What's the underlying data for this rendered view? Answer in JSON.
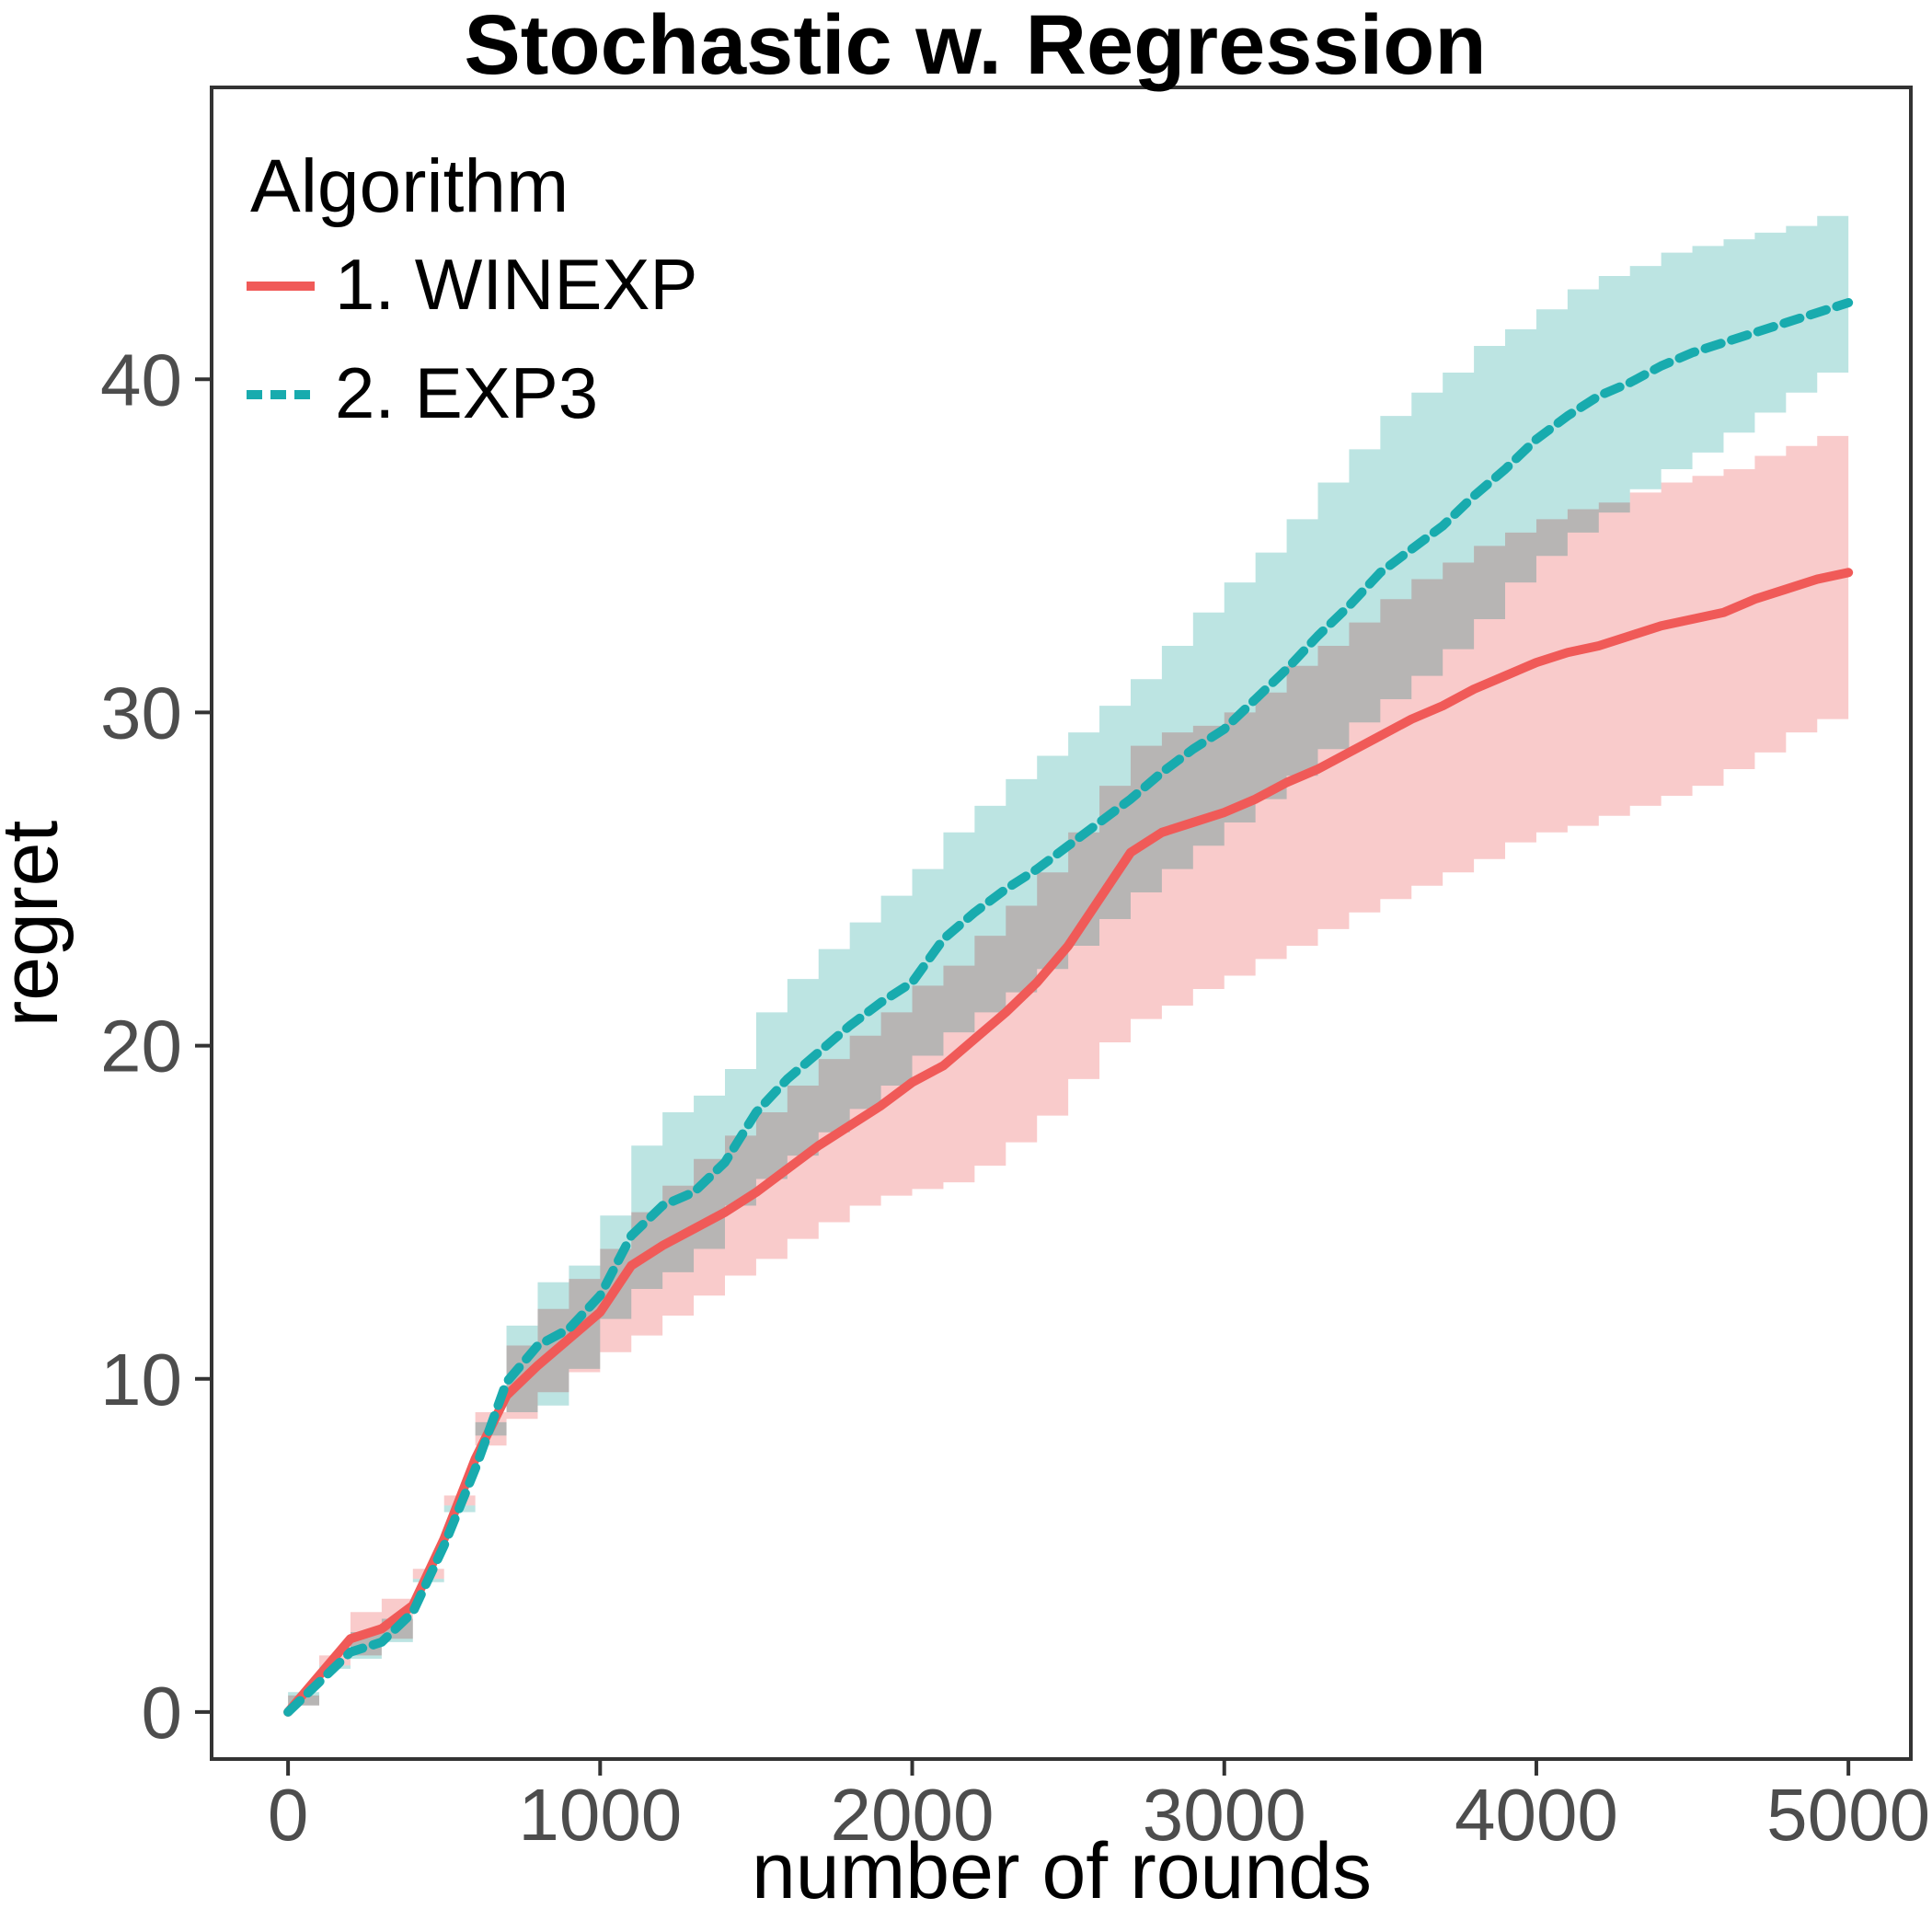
{
  "title": "Stochastic w. Regression",
  "colors": {
    "winexp_line": "#f05a58",
    "winexp_ribbon": "#f9cbcb",
    "exp3_line": "#18abae",
    "exp3_ribbon": "#bce4e2",
    "overlap_gray": "#c0c9c9",
    "panel_border": "#333333",
    "tick_mark": "#333333",
    "tick_label": "#4d4d4d"
  },
  "legend": {
    "title": "Algorithm",
    "items": [
      {
        "label": "1. WINEXP",
        "series": "winexp",
        "style": "solid"
      },
      {
        "label": "2. EXP3",
        "series": "exp3",
        "style": "dashed"
      }
    ]
  },
  "chart_data": {
    "type": "line",
    "title": "Stochastic w. Regression",
    "xlabel": "number of rounds",
    "ylabel": "regret",
    "x_ticks": [
      0,
      1000,
      2000,
      3000,
      4000,
      5000
    ],
    "y_ticks": [
      0,
      10,
      20,
      30,
      40
    ],
    "xlim": [
      -245,
      5200
    ],
    "ylim": [
      -1.41,
      48.76
    ],
    "grid": "off",
    "legend_position": "top-left-inside",
    "x": [
      0,
      100,
      200,
      300,
      400,
      500,
      600,
      700,
      800,
      900,
      1000,
      1100,
      1200,
      1300,
      1400,
      1500,
      1600,
      1700,
      1800,
      1900,
      2000,
      2100,
      2200,
      2300,
      2400,
      2500,
      2600,
      2700,
      2800,
      2900,
      3000,
      3100,
      3200,
      3300,
      3400,
      3500,
      3600,
      3700,
      3800,
      3900,
      4000,
      4100,
      4200,
      4300,
      4400,
      4500,
      4600,
      4700,
      4800,
      4900,
      5000
    ],
    "series": [
      {
        "name": "1. WINEXP",
        "dash": "solid",
        "values": [
          0.0,
          1.1,
          2.2,
          2.5,
          3.2,
          5.2,
          7.6,
          9.5,
          10.4,
          11.2,
          12.0,
          13.4,
          14.0,
          14.5,
          15.0,
          15.6,
          16.3,
          17.0,
          17.6,
          18.2,
          18.9,
          19.4,
          20.2,
          21.0,
          21.9,
          23.0,
          24.4,
          25.8,
          26.4,
          26.7,
          27.0,
          27.4,
          27.9,
          28.3,
          28.8,
          29.3,
          29.8,
          30.2,
          30.7,
          31.1,
          31.5,
          31.8,
          32.0,
          32.3,
          32.6,
          32.8,
          33.0,
          33.4,
          33.7,
          34.0,
          34.2
        ],
        "lower": [
          -0.2,
          0.5,
          1.4,
          1.7,
          2.2,
          4.0,
          6.2,
          8.0,
          8.8,
          9.6,
          10.2,
          10.8,
          11.3,
          11.9,
          12.5,
          13.1,
          13.6,
          14.2,
          14.7,
          15.2,
          15.5,
          15.7,
          15.9,
          16.4,
          17.1,
          17.9,
          19.0,
          20.1,
          20.8,
          21.2,
          21.7,
          22.1,
          22.6,
          23.0,
          23.5,
          24.0,
          24.4,
          24.8,
          25.2,
          25.6,
          26.1,
          26.4,
          26.6,
          26.9,
          27.2,
          27.5,
          27.8,
          28.3,
          28.8,
          29.4,
          29.8
        ],
        "upper": [
          0.2,
          1.7,
          3.0,
          3.4,
          4.3,
          6.5,
          9.0,
          11.0,
          12.1,
          13.0,
          13.9,
          15.0,
          15.8,
          16.6,
          17.3,
          18.0,
          18.8,
          19.6,
          20.3,
          21.0,
          21.8,
          22.4,
          23.3,
          24.2,
          25.2,
          26.4,
          27.8,
          29.0,
          29.4,
          29.6,
          30.0,
          30.6,
          31.4,
          32.0,
          32.7,
          33.4,
          34.0,
          34.5,
          35.0,
          35.4,
          35.8,
          36.1,
          36.3,
          36.6,
          36.9,
          37.1,
          37.3,
          37.7,
          38.0,
          38.3,
          38.5
        ]
      },
      {
        "name": "2. EXP3",
        "dash": "dashed",
        "values": [
          0.0,
          0.9,
          1.8,
          2.1,
          3.0,
          5.0,
          7.3,
          9.9,
          11.0,
          11.5,
          12.5,
          14.3,
          15.2,
          15.6,
          16.5,
          18.0,
          19.0,
          19.8,
          20.6,
          21.3,
          21.9,
          23.2,
          24.0,
          24.7,
          25.3,
          26.0,
          26.7,
          27.4,
          28.2,
          28.9,
          29.5,
          30.4,
          31.3,
          32.3,
          33.2,
          34.2,
          34.9,
          35.6,
          36.5,
          37.3,
          38.2,
          38.9,
          39.5,
          39.9,
          40.4,
          40.8,
          41.1,
          41.4,
          41.7,
          42.0,
          42.3
        ],
        "lower": [
          -0.2,
          0.6,
          1.4,
          1.6,
          2.1,
          3.9,
          6.0,
          8.3,
          9.0,
          9.2,
          10.3,
          11.8,
          12.7,
          13.2,
          13.9,
          15.2,
          16.0,
          16.7,
          17.4,
          18.1,
          18.8,
          19.7,
          20.4,
          21.0,
          21.6,
          22.3,
          23.0,
          23.8,
          24.6,
          25.3,
          26.0,
          26.7,
          27.4,
          28.1,
          28.9,
          29.7,
          30.4,
          31.1,
          31.9,
          32.8,
          33.9,
          34.7,
          35.4,
          36.0,
          36.7,
          37.3,
          37.8,
          38.4,
          39.0,
          39.6,
          40.2
        ],
        "upper": [
          0.2,
          1.3,
          2.4,
          2.8,
          4.0,
          6.2,
          8.7,
          11.6,
          12.9,
          13.4,
          14.9,
          17.0,
          18.0,
          18.5,
          19.3,
          21.0,
          22.0,
          22.9,
          23.7,
          24.5,
          25.3,
          26.4,
          27.2,
          28.0,
          28.7,
          29.4,
          30.2,
          31.0,
          32.0,
          33.0,
          33.9,
          34.8,
          35.8,
          36.9,
          37.9,
          38.9,
          39.6,
          40.2,
          41.0,
          41.5,
          42.1,
          42.7,
          43.1,
          43.4,
          43.8,
          44.0,
          44.2,
          44.4,
          44.6,
          44.9,
          45.2
        ]
      }
    ]
  }
}
